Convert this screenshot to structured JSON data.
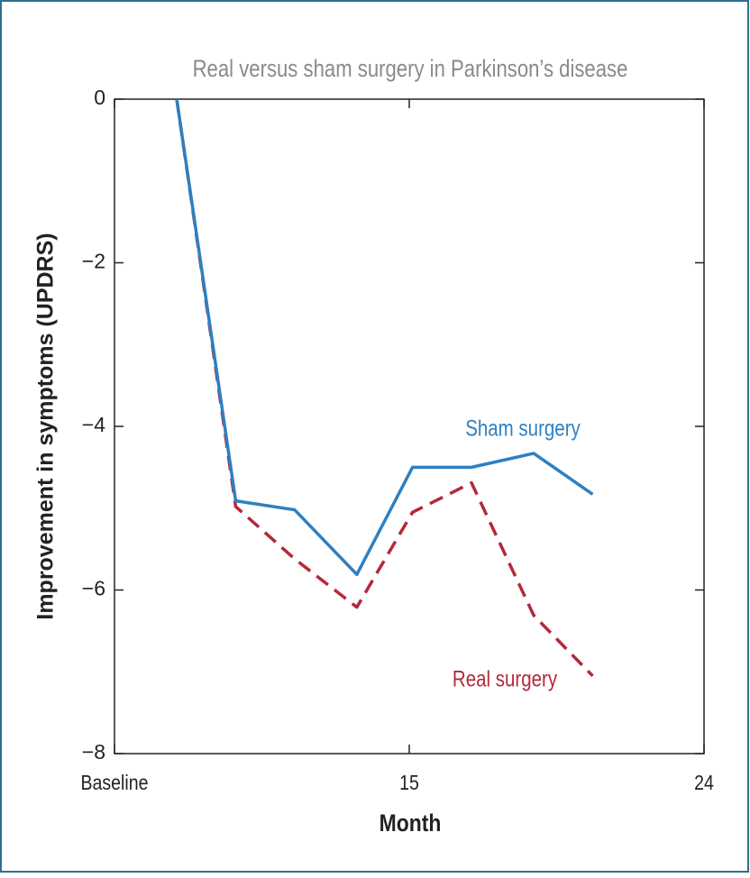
{
  "chart_data": {
    "type": "line",
    "title": "Real versus sham surgery in Parkinson’s disease",
    "xlabel": "Month",
    "ylabel": "Improvement in symptoms (UPDRS)",
    "x": [
      7.9,
      9.7,
      11.5,
      13.4,
      15.1,
      16.9,
      18.8,
      20.6
    ],
    "series": [
      {
        "name": "Sham surgery",
        "color": "#2e7fc1",
        "dash": false,
        "values": [
          0,
          -4.91,
          -5.02,
          -5.81,
          -4.5,
          -4.5,
          -4.33,
          -4.83
        ]
      },
      {
        "name": "Real surgery",
        "color": "#b5283a",
        "dash": true,
        "values": [
          0,
          -4.98,
          -5.62,
          -6.21,
          -5.05,
          -4.69,
          -6.31,
          -7.05
        ]
      }
    ],
    "xlim": [
      6,
      24
    ],
    "xticks": [
      {
        "value": 6,
        "label": "Baseline"
      },
      15,
      24
    ],
    "ylim": [
      -8,
      0
    ],
    "yticks": [
      {
        "value": -8,
        "label": "−8"
      },
      {
        "value": -6,
        "label": "−6"
      },
      {
        "value": -4,
        "label": "−4"
      },
      {
        "value": -2,
        "label": "−2"
      },
      0
    ]
  }
}
